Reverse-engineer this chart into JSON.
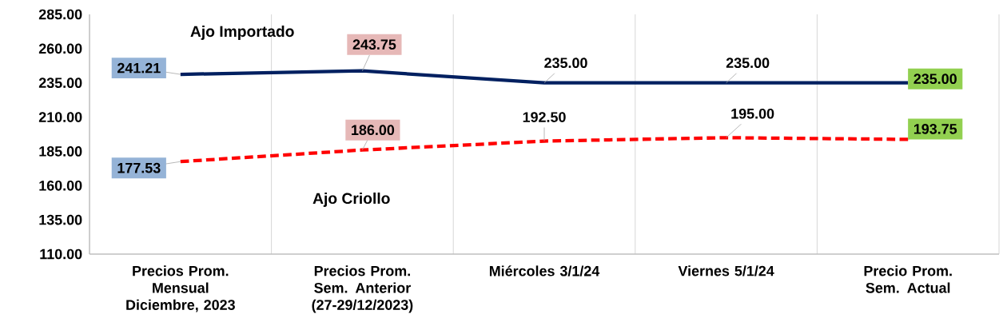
{
  "chart_data": {
    "type": "line",
    "categories": [
      "Precios Prom. Mensual Diciembre, 2023",
      "Precios Prom. Sem. Anterior (27-29/12/2023)",
      "Miércoles 3/1/24",
      "Viernes 5/1/24",
      "Precio Prom. Sem. Actual"
    ],
    "series": [
      {
        "name": "Ajo Importado",
        "color": "#002060",
        "line_style": "solid",
        "values": [
          241.21,
          243.75,
          235.0,
          235.0,
          235.0
        ],
        "value_labels": [
          "241.21",
          "243.75",
          "235.00",
          "235.00",
          "235.00"
        ]
      },
      {
        "name": "Ajo Criollo",
        "color": "#ff0000",
        "line_style": "dashed",
        "values": [
          177.53,
          186.0,
          192.5,
          195.0,
          193.75
        ],
        "value_labels": [
          "177.53",
          "186.00",
          "192.50",
          "195.00",
          "193.75"
        ]
      }
    ],
    "ylim": [
      110,
      285
    ],
    "yticks": [
      {
        "value": 110,
        "label": "110.00"
      },
      {
        "value": 135,
        "label": "135.00"
      },
      {
        "value": 160,
        "label": "160.00"
      },
      {
        "value": 185,
        "label": "185.00"
      },
      {
        "value": 210,
        "label": "210.00"
      },
      {
        "value": 235,
        "label": "235.00"
      },
      {
        "value": 260,
        "label": "260.00"
      },
      {
        "value": 285,
        "label": "285.00"
      }
    ],
    "grid": "x",
    "legend": false,
    "marker": "none"
  }
}
